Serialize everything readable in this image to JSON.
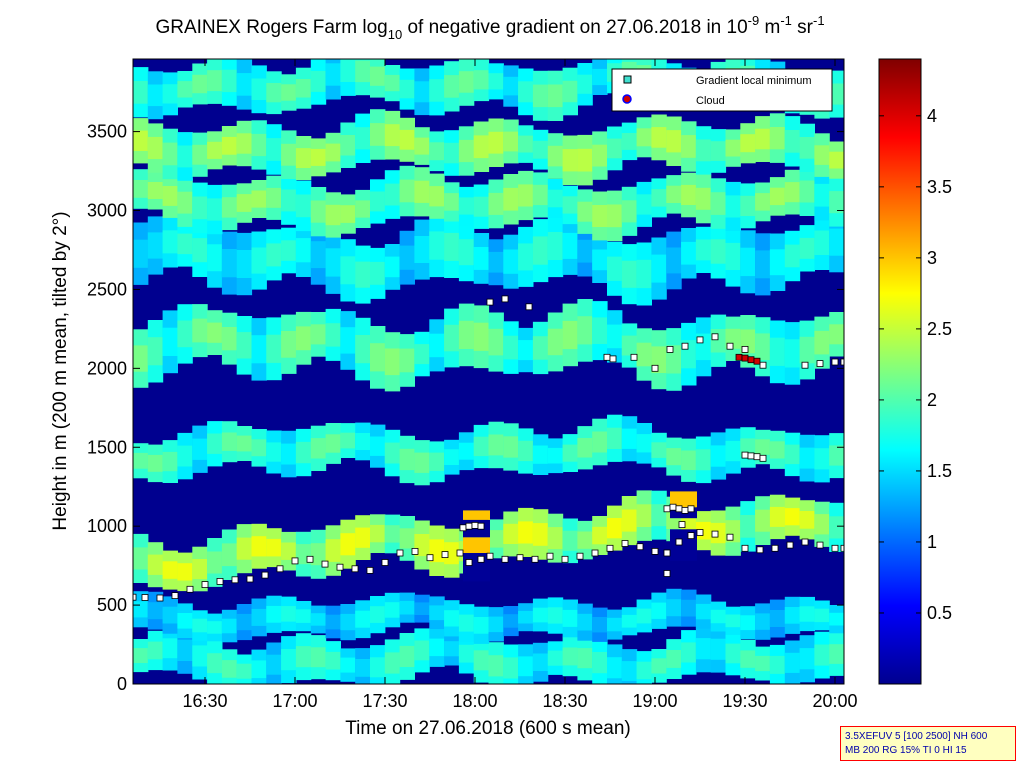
{
  "chart_data": {
    "type": "heatmap",
    "title": {
      "part1": "GRAINEX Rogers Farm log",
      "sub": "10",
      "part2": " of negative gradient on 27.06.2018 in 10",
      "sup1": "-9",
      "part3": " m",
      "sup2": "-1",
      "part4": " sr",
      "sup3": "-1"
    },
    "xlabel": "Time on 27.06.2018 (600 s mean)",
    "ylabel": "Height in m (200 m mean, tilted by 2°)",
    "xlim_minutes_since_midnight": [
      966,
      1203
    ],
    "ylim": [
      0,
      3960
    ],
    "x_ticks": [
      {
        "label": "16:30",
        "t": 990
      },
      {
        "label": "17:00",
        "t": 1020
      },
      {
        "label": "17:30",
        "t": 1050
      },
      {
        "label": "18:00",
        "t": 1080
      },
      {
        "label": "18:30",
        "t": 1110
      },
      {
        "label": "19:00",
        "t": 1140
      },
      {
        "label": "19:30",
        "t": 1170
      },
      {
        "label": "20:00",
        "t": 1200
      }
    ],
    "y_ticks": [
      {
        "label": "0",
        "v": 0
      },
      {
        "label": "500",
        "v": 500
      },
      {
        "label": "1000",
        "v": 1000
      },
      {
        "label": "1500",
        "v": 1500
      },
      {
        "label": "2000",
        "v": 2000
      },
      {
        "label": "2500",
        "v": 2500
      },
      {
        "label": "3000",
        "v": 3000
      },
      {
        "label": "3500",
        "v": 3500
      }
    ],
    "colorbar": {
      "range": [
        0,
        4.4
      ],
      "ticks": [
        {
          "label": "0.5",
          "v": 0.5
        },
        {
          "label": "1",
          "v": 1
        },
        {
          "label": "1.5",
          "v": 1.5
        },
        {
          "label": "2",
          "v": 2
        },
        {
          "label": "2.5",
          "v": 2.5
        },
        {
          "label": "3",
          "v": 3
        },
        {
          "label": "3.5",
          "v": 3.5
        },
        {
          "label": "4",
          "v": 4
        }
      ]
    },
    "bands": [
      {
        "center": 150,
        "width": 150,
        "value": 1.7
      },
      {
        "center": 420,
        "width": 120,
        "value": 1.5
      },
      {
        "center": 780,
        "width": 160,
        "value": 2.3
      },
      {
        "center": 1480,
        "width": 150,
        "value": 1.8
      },
      {
        "center": 2150,
        "width": 200,
        "value": 1.9
      },
      {
        "center": 2700,
        "width": 200,
        "value": 1.6
      },
      {
        "center": 3050,
        "width": 160,
        "value": 2.0
      },
      {
        "center": 3400,
        "width": 160,
        "value": 2.1
      },
      {
        "center": 3800,
        "width": 160,
        "value": 1.8
      }
    ],
    "series": [
      {
        "name": "Gradient local minimum",
        "points": [
          [
            966,
            550
          ],
          [
            970,
            548
          ],
          [
            975,
            545
          ],
          [
            980,
            560
          ],
          [
            985,
            600
          ],
          [
            990,
            630
          ],
          [
            995,
            650
          ],
          [
            1000,
            660
          ],
          [
            1005,
            665
          ],
          [
            1010,
            690
          ],
          [
            1015,
            730
          ],
          [
            1020,
            780
          ],
          [
            1025,
            790
          ],
          [
            1030,
            760
          ],
          [
            1035,
            740
          ],
          [
            1040,
            730
          ],
          [
            1045,
            720
          ],
          [
            1050,
            770
          ],
          [
            1055,
            830
          ],
          [
            1060,
            840
          ],
          [
            1065,
            800
          ],
          [
            1070,
            820
          ],
          [
            1075,
            830
          ],
          [
            1078,
            770
          ],
          [
            1082,
            790
          ],
          [
            1085,
            810
          ],
          [
            1090,
            790
          ],
          [
            1095,
            800
          ],
          [
            1100,
            790
          ],
          [
            1105,
            810
          ],
          [
            1110,
            790
          ],
          [
            1115,
            810
          ],
          [
            1120,
            830
          ],
          [
            1125,
            860
          ],
          [
            1130,
            890
          ],
          [
            1135,
            870
          ],
          [
            1140,
            840
          ],
          [
            1144,
            830
          ],
          [
            1148,
            900
          ],
          [
            1152,
            940
          ],
          [
            1155,
            960
          ],
          [
            1160,
            950
          ],
          [
            1165,
            930
          ],
          [
            1170,
            860
          ],
          [
            1175,
            850
          ],
          [
            1180,
            860
          ],
          [
            1185,
            880
          ],
          [
            1190,
            900
          ],
          [
            1195,
            880
          ],
          [
            1200,
            860
          ],
          [
            1203,
            860
          ],
          [
            1076,
            990
          ],
          [
            1078,
            1000
          ],
          [
            1080,
            1005
          ],
          [
            1082,
            1000
          ],
          [
            1144,
            1110
          ],
          [
            1146,
            1120
          ],
          [
            1148,
            1110
          ],
          [
            1150,
            1100
          ],
          [
            1152,
            1110
          ],
          [
            1144,
            700
          ],
          [
            1149,
            1010
          ],
          [
            1085,
            2420
          ],
          [
            1090,
            2440
          ],
          [
            1098,
            2390
          ],
          [
            1124,
            2070
          ],
          [
            1126,
            2060
          ],
          [
            1133,
            2070
          ],
          [
            1140,
            2000
          ],
          [
            1145,
            2120
          ],
          [
            1150,
            2140
          ],
          [
            1155,
            2180
          ],
          [
            1160,
            2200
          ],
          [
            1165,
            2140
          ],
          [
            1170,
            2120
          ],
          [
            1176,
            2020
          ],
          [
            1170,
            1450
          ],
          [
            1172,
            1445
          ],
          [
            1174,
            1440
          ],
          [
            1176,
            1430
          ],
          [
            1190,
            2020
          ],
          [
            1195,
            2030
          ],
          [
            1200,
            2040
          ],
          [
            1203,
            2040
          ]
        ]
      },
      {
        "name": "Cloud",
        "points": [
          [
            1168,
            2070
          ],
          [
            1170,
            2065
          ],
          [
            1172,
            2055
          ],
          [
            1174,
            2045
          ]
        ]
      }
    ],
    "blocks": [
      {
        "t0": 1076,
        "t1": 1085,
        "h0": 650,
        "h1": 830,
        "value": 0.1
      },
      {
        "t0": 1076,
        "t1": 1085,
        "h0": 830,
        "h1": 930,
        "value": 3.0
      },
      {
        "t0": 1076,
        "t1": 1085,
        "h0": 930,
        "h1": 1040,
        "value": 0.1
      },
      {
        "t0": 1076,
        "t1": 1085,
        "h0": 1040,
        "h1": 1100,
        "value": 3.0
      },
      {
        "t0": 1145,
        "t1": 1154,
        "h0": 780,
        "h1": 980,
        "value": 0.1
      },
      {
        "t0": 1145,
        "t1": 1154,
        "h0": 1050,
        "h1": 1120,
        "value": 0.1
      },
      {
        "t0": 1145,
        "t1": 1154,
        "h0": 1120,
        "h1": 1220,
        "value": 3.0
      }
    ],
    "legend_position": "top-right",
    "grid": false
  },
  "info_box": {
    "line1": "3.5XEFUV 5 [100 2500] NH 600",
    "line2": "MB 200 RG 15% TI 0 HI 15"
  }
}
